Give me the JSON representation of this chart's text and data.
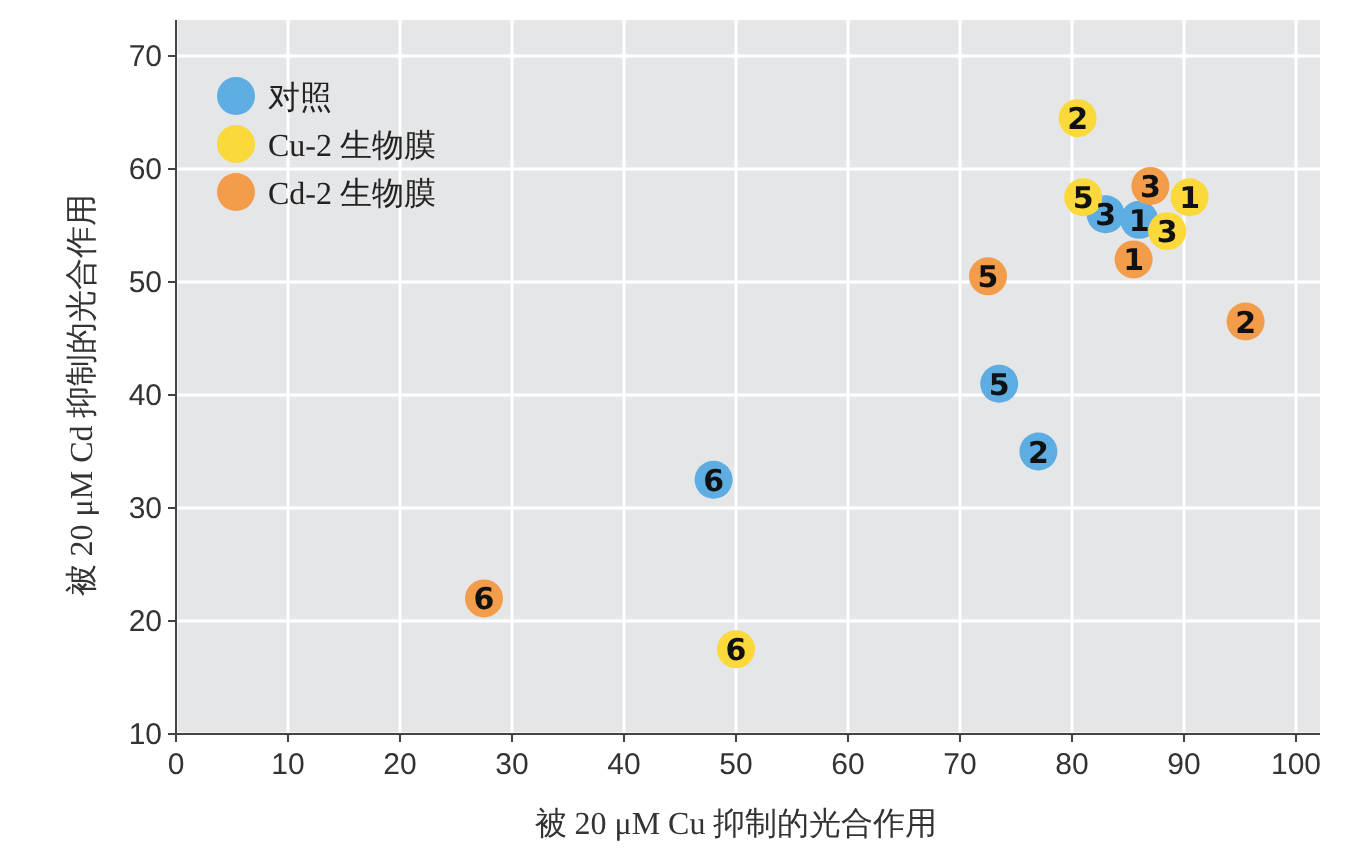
{
  "chart_data": {
    "type": "scatter",
    "xlabel": "被 20 μM Cu 抑制的光合作用",
    "ylabel": "被 20 μM Cd 抑制的光合作用",
    "xlim": [
      0,
      100
    ],
    "xticks": [
      0,
      10,
      20,
      30,
      40,
      50,
      60,
      70,
      80,
      90,
      100
    ],
    "ylim": [
      10,
      70
    ],
    "yticks": [
      10,
      20,
      30,
      40,
      50,
      60,
      70
    ],
    "grid": true,
    "legend": "top left",
    "marker": "circle",
    "series": [
      {
        "name": "对照",
        "color": "#5dade2",
        "x": [
          48,
          73.5,
          77,
          83,
          86
        ],
        "values": [
          32.5,
          41,
          35,
          56,
          55.5
        ]
      },
      {
        "name": "Cu-2 生物膜",
        "color": "#fbd93a",
        "x": [
          80.5,
          81,
          90.5,
          88.5,
          50
        ],
        "values": [
          64.5,
          57.5,
          57.5,
          54.5,
          17.5
        ]
      },
      {
        "name": "Cd-2 生物膜",
        "color": "#f39c4a",
        "x": [
          87,
          85.5,
          95.5,
          72.5,
          27.5
        ],
        "values": [
          58.5,
          52,
          46.5,
          50.5,
          22
        ]
      }
    ],
    "annotations": [
      {
        "text": "6",
        "x": 48,
        "y": 32.5
      },
      {
        "text": "5",
        "x": 73.5,
        "y": 41
      },
      {
        "text": "2",
        "x": 77,
        "y": 35
      },
      {
        "text": "3",
        "x": 83,
        "y": 56
      },
      {
        "text": "1",
        "x": 86,
        "y": 55.5
      },
      {
        "text": "2",
        "x": 80.5,
        "y": 64.5
      },
      {
        "text": "5",
        "x": 81,
        "y": 57.5
      },
      {
        "text": "1",
        "x": 90.5,
        "y": 57.5
      },
      {
        "text": "3",
        "x": 88.5,
        "y": 54.5
      },
      {
        "text": "6",
        "x": 50,
        "y": 17.5
      },
      {
        "text": "3",
        "x": 87,
        "y": 58.5
      },
      {
        "text": "1",
        "x": 85.5,
        "y": 52
      },
      {
        "text": "2",
        "x": 95.5,
        "y": 46.5
      },
      {
        "text": "5",
        "x": 72.5,
        "y": 50.5
      },
      {
        "text": "6",
        "x": 27.5,
        "y": 22
      }
    ]
  }
}
